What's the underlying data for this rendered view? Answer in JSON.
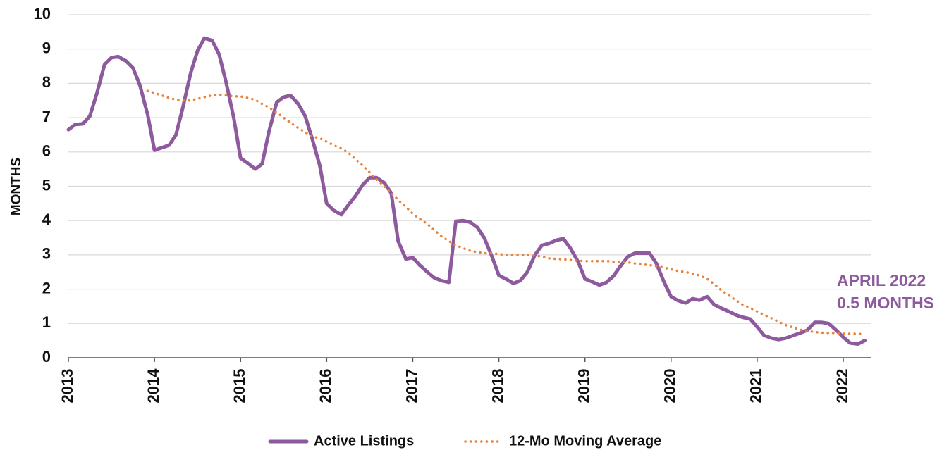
{
  "chart_data": {
    "type": "line",
    "y_label": "MONTHS",
    "annotation": [
      "APRIL 2022",
      "0.5 MONTHS"
    ],
    "annotation_color": "#8e5a9e",
    "x": [
      2013,
      2013.08,
      2013.17,
      2013.25,
      2013.33,
      2013.42,
      2013.5,
      2013.58,
      2013.67,
      2013.75,
      2013.83,
      2013.92,
      2014,
      2014.08,
      2014.17,
      2014.25,
      2014.33,
      2014.42,
      2014.5,
      2014.58,
      2014.67,
      2014.75,
      2014.83,
      2014.92,
      2015,
      2015.08,
      2015.17,
      2015.25,
      2015.33,
      2015.42,
      2015.5,
      2015.58,
      2015.67,
      2015.75,
      2015.83,
      2015.92,
      2016,
      2016.08,
      2016.17,
      2016.25,
      2016.33,
      2016.42,
      2016.5,
      2016.58,
      2016.67,
      2016.75,
      2016.83,
      2016.92,
      2017,
      2017.08,
      2017.17,
      2017.25,
      2017.33,
      2017.42,
      2017.5,
      2017.58,
      2017.67,
      2017.75,
      2017.83,
      2017.92,
      2018,
      2018.08,
      2018.17,
      2018.25,
      2018.33,
      2018.42,
      2018.5,
      2018.58,
      2018.67,
      2018.75,
      2018.83,
      2018.92,
      2019,
      2019.08,
      2019.17,
      2019.25,
      2019.33,
      2019.42,
      2019.5,
      2019.58,
      2019.67,
      2019.75,
      2019.83,
      2019.92,
      2020,
      2020.08,
      2020.17,
      2020.25,
      2020.33,
      2020.42,
      2020.5,
      2020.58,
      2020.67,
      2020.75,
      2020.83,
      2020.92,
      2021,
      2021.08,
      2021.17,
      2021.25,
      2021.33,
      2021.42,
      2021.5,
      2021.58,
      2021.67,
      2021.75,
      2021.83,
      2021.92,
      2022,
      2022.08,
      2022.17,
      2022.25
    ],
    "series": [
      {
        "name": "Active Listings",
        "color": "#8e5a9e",
        "style": "solid",
        "values": [
          6.65,
          6.8,
          6.82,
          7.05,
          7.7,
          8.55,
          8.75,
          8.78,
          8.65,
          8.45,
          7.95,
          7.1,
          6.05,
          6.12,
          6.2,
          6.5,
          7.3,
          8.3,
          8.95,
          9.32,
          9.25,
          8.85,
          8.05,
          7.0,
          5.82,
          5.68,
          5.5,
          5.65,
          6.6,
          7.45,
          7.6,
          7.65,
          7.4,
          7.05,
          6.4,
          5.6,
          4.5,
          4.3,
          4.17,
          4.45,
          4.7,
          5.05,
          5.25,
          5.25,
          5.1,
          4.8,
          3.4,
          2.88,
          2.92,
          2.7,
          2.5,
          2.33,
          2.25,
          2.2,
          3.98,
          4.0,
          3.95,
          3.8,
          3.5,
          2.95,
          2.4,
          2.3,
          2.17,
          2.25,
          2.5,
          3.0,
          3.28,
          3.33,
          3.43,
          3.47,
          3.2,
          2.8,
          2.3,
          2.22,
          2.12,
          2.2,
          2.38,
          2.7,
          2.95,
          3.05,
          3.05,
          3.05,
          2.75,
          2.2,
          1.78,
          1.67,
          1.6,
          1.72,
          1.68,
          1.78,
          1.55,
          1.45,
          1.35,
          1.25,
          1.18,
          1.13,
          0.9,
          0.65,
          0.57,
          0.53,
          0.57,
          0.65,
          0.72,
          0.8,
          1.03,
          1.03,
          1.0,
          0.8,
          0.6,
          0.43,
          0.4,
          0.5
        ]
      },
      {
        "name": "12-Mo Moving Average",
        "color": "#e8823a",
        "style": "dotted",
        "values": [
          null,
          null,
          null,
          null,
          null,
          null,
          null,
          null,
          null,
          null,
          null,
          7.78,
          7.72,
          7.65,
          7.58,
          7.52,
          7.5,
          7.5,
          7.55,
          7.6,
          7.65,
          7.67,
          7.65,
          7.62,
          7.62,
          7.58,
          7.52,
          7.4,
          7.3,
          7.15,
          7.0,
          6.85,
          6.7,
          6.58,
          6.45,
          6.4,
          6.3,
          6.2,
          6.1,
          5.98,
          5.8,
          5.6,
          5.4,
          5.2,
          5.0,
          4.8,
          4.6,
          4.4,
          4.2,
          4.05,
          3.9,
          3.72,
          3.55,
          3.4,
          3.28,
          3.2,
          3.12,
          3.08,
          3.05,
          3.05,
          3.02,
          3.0,
          3.0,
          3.0,
          3.0,
          2.98,
          2.95,
          2.9,
          2.88,
          2.87,
          2.85,
          2.83,
          2.82,
          2.82,
          2.82,
          2.82,
          2.8,
          2.8,
          2.78,
          2.75,
          2.72,
          2.7,
          2.67,
          2.63,
          2.58,
          2.53,
          2.5,
          2.45,
          2.4,
          2.3,
          2.15,
          1.98,
          1.82,
          1.68,
          1.55,
          1.45,
          1.35,
          1.25,
          1.15,
          1.05,
          0.95,
          0.88,
          0.82,
          0.78,
          0.75,
          0.73,
          0.72,
          0.72,
          0.7,
          0.7,
          0.7,
          0.68
        ]
      }
    ],
    "xlim": [
      2013,
      2022.25
    ],
    "xticks": [
      2013,
      2014,
      2015,
      2016,
      2017,
      2018,
      2019,
      2020,
      2021,
      2022
    ],
    "ylim": [
      0,
      10
    ],
    "yticks": [
      0,
      1,
      2,
      3,
      4,
      5,
      6,
      7,
      8,
      9,
      10
    ],
    "grid": true,
    "legend": "bottom"
  }
}
